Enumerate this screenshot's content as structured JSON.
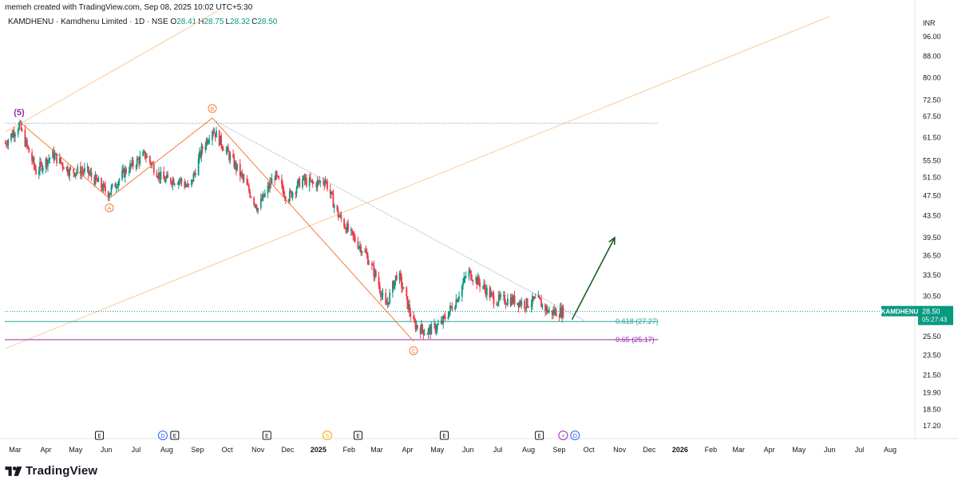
{
  "header": {
    "created_by": "memeh created with TradingView.com, Sep 08, 2025 10:02 UTC+5:30"
  },
  "symbol": {
    "description": "KAMDHENU · Kamdhenu Limited · 1D · NSE",
    "ohlc": [
      {
        "label": "O",
        "value": "28.41"
      },
      {
        "label": "H",
        "value": "28.75"
      },
      {
        "label": "L",
        "value": "28.32"
      },
      {
        "label": "C",
        "value": "28.50"
      }
    ]
  },
  "currency": "INR",
  "price_tag": {
    "symbol": "KAMDHENU",
    "price": "28.50",
    "countdown": "05:27:43",
    "value": 28.5
  },
  "brand": "TradingView",
  "colors": {
    "up": "#089981",
    "down": "#f23645",
    "wave": "#f57c3c",
    "channel": "#fbc995",
    "fib618": "#26a69a",
    "fib65": "#9c27b0",
    "arrow": "#1b5e20",
    "dotted": "#5b8fb0",
    "wave5": "#9c27b0",
    "event": "#131722",
    "dividend": "#2962ff",
    "split": "#f7a600"
  },
  "chart_data": {
    "type": "candlestick",
    "y_ticks": [
      "96.00",
      "88.00",
      "80.00",
      "72.50",
      "67.50",
      "61.50",
      "55.50",
      "51.50",
      "47.50",
      "43.50",
      "39.50",
      "36.50",
      "33.50",
      "30.50",
      "27.50",
      "25.50",
      "23.50",
      "21.50",
      "19.90",
      "18.50",
      "17.20"
    ],
    "x_ticks": [
      "Mar",
      "Apr",
      "May",
      "Jun",
      "Jul",
      "Aug",
      "Sep",
      "Oct",
      "Nov",
      "Dec",
      "2025",
      "Feb",
      "Mar",
      "Apr",
      "May",
      "Jun",
      "Jul",
      "Aug",
      "Sep",
      "Oct",
      "Nov",
      "Dec",
      "2026",
      "Feb",
      "Mar",
      "Apr",
      "May",
      "Jun",
      "Jul",
      "Aug"
    ],
    "y_scale": "log",
    "fib_levels": [
      {
        "label": "0.618 (27.27)",
        "value": 27.27
      },
      {
        "label": "0.65 (25.17)",
        "value": 25.17
      }
    ],
    "resistance_level": 65.5,
    "current_price": 28.5,
    "wave_labels": [
      {
        "label": "(5)",
        "date": "2024-03-05",
        "price": 66
      },
      {
        "label": "A",
        "date": "2024-06-04",
        "price": 47
      },
      {
        "label": "B",
        "date": "2024-09-16",
        "price": 67
      },
      {
        "label": "C",
        "date": "2025-04-07",
        "price": 25
      }
    ],
    "wave_path": [
      {
        "date": "2024-03-05",
        "price": 66
      },
      {
        "date": "2024-06-04",
        "price": 47
      },
      {
        "date": "2024-09-16",
        "price": 67
      },
      {
        "date": "2025-04-07",
        "price": 25
      }
    ],
    "downtrend_line": [
      {
        "date": "2024-09-20",
        "price": 66
      },
      {
        "date": "2025-09-26",
        "price": 27.4
      }
    ],
    "channel_lines": [
      [
        {
          "date": "2024-02-20",
          "price": 63
        },
        {
          "date": "2025-02-15",
          "price": 155
        }
      ],
      [
        {
          "date": "2024-02-20",
          "price": 24.2
        },
        {
          "date": "2026-06-01",
          "price": 105
        }
      ]
    ],
    "projection_arrow": [
      {
        "date": "2025-09-14",
        "price": 27.5
      },
      {
        "date": "2025-10-27",
        "price": 39.5
      }
    ],
    "events": [
      {
        "type": "E",
        "date": "2024-05-25"
      },
      {
        "type": "D",
        "date": "2024-07-28"
      },
      {
        "type": "E",
        "date": "2024-08-09"
      },
      {
        "type": "E",
        "date": "2024-11-10"
      },
      {
        "type": "S",
        "date": "2025-01-10"
      },
      {
        "type": "E",
        "date": "2025-02-10"
      },
      {
        "type": "E",
        "date": "2025-05-08"
      },
      {
        "type": "E",
        "date": "2025-08-12"
      },
      {
        "type": "⚡",
        "date": "2025-09-05"
      },
      {
        "type": "D",
        "date": "2025-09-17"
      }
    ],
    "price_anchors": [
      [
        "2024-02-20",
        60
      ],
      [
        "2024-03-05",
        65
      ],
      [
        "2024-03-22",
        53
      ],
      [
        "2024-04-08",
        57
      ],
      [
        "2024-04-25",
        53
      ],
      [
        "2024-05-12",
        53
      ],
      [
        "2024-06-03",
        48
      ],
      [
        "2024-06-20",
        53
      ],
      [
        "2024-07-10",
        57
      ],
      [
        "2024-07-28",
        51
      ],
      [
        "2024-08-14",
        51
      ],
      [
        "2024-08-24",
        49
      ],
      [
        "2024-09-05",
        58
      ],
      [
        "2024-09-16",
        64
      ],
      [
        "2024-09-30",
        58
      ],
      [
        "2024-10-15",
        52
      ],
      [
        "2024-11-01",
        45
      ],
      [
        "2024-11-18",
        52
      ],
      [
        "2024-12-01",
        47
      ],
      [
        "2024-12-15",
        51
      ],
      [
        "2024-12-28",
        50
      ],
      [
        "2025-01-08",
        51
      ],
      [
        "2025-01-20",
        44
      ],
      [
        "2025-02-03",
        40
      ],
      [
        "2025-02-17",
        37
      ],
      [
        "2025-03-01",
        33
      ],
      [
        "2025-03-10",
        29
      ],
      [
        "2025-03-22",
        34
      ],
      [
        "2025-04-07",
        27
      ],
      [
        "2025-04-20",
        26
      ],
      [
        "2025-05-05",
        27
      ],
      [
        "2025-05-20",
        30
      ],
      [
        "2025-06-01",
        34
      ],
      [
        "2025-06-15",
        32
      ],
      [
        "2025-06-28",
        30
      ],
      [
        "2025-07-15",
        30
      ],
      [
        "2025-07-30",
        29.5
      ],
      [
        "2025-08-10",
        30
      ],
      [
        "2025-08-22",
        28.4
      ],
      [
        "2025-09-05",
        28.5
      ]
    ]
  }
}
